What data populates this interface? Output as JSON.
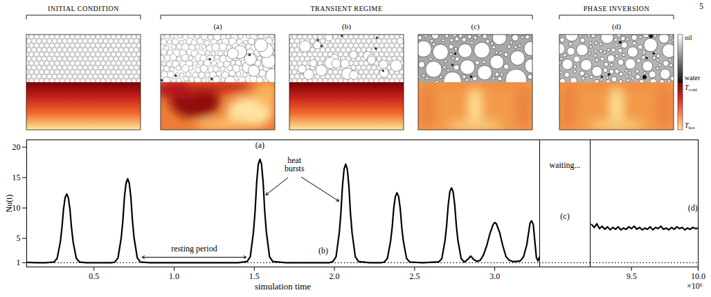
{
  "figure": {
    "page_number": "5",
    "groups": [
      {
        "title": "INITIAL CONDITION",
        "panels": [
          null
        ]
      },
      {
        "title": "TRANSIENT REGIME",
        "panels": [
          "(a)",
          "(b)",
          "(c)"
        ]
      },
      {
        "title": "PHASE INVERSION",
        "panels": [
          "(d)"
        ]
      }
    ],
    "emulsion_colorbar": {
      "top": "oil",
      "bottom": "water"
    },
    "temperature_colorbar": {
      "top": {
        "text": "T",
        "subscript": "cold"
      },
      "bottom": {
        "text": "T",
        "subscript": "hot"
      }
    }
  },
  "chart_data": {
    "type": "line",
    "ylabel": "Nu(t)",
    "xlabel": "simulation time",
    "x_multiplier": "×10⁶",
    "color": "#000000",
    "ylim": [
      0.3,
      21.2
    ],
    "yticks": [
      1,
      5,
      10,
      15,
      20
    ],
    "reference_line": {
      "y": 1,
      "line_style": "dotted"
    },
    "segments": [
      {
        "xlim": [
          0.08,
          3.28
        ],
        "xticks": [
          0.5,
          {
            "value": 1,
            "label": "1.0"
          },
          1.5,
          {
            "value": 2,
            "label": "2.0"
          },
          2.5,
          {
            "value": 3,
            "label": "3.0"
          }
        ],
        "x": [
          0.08,
          0.15,
          0.2,
          0.25,
          0.27,
          0.29,
          0.3,
          0.31,
          0.32,
          0.33,
          0.34,
          0.35,
          0.36,
          0.37,
          0.39,
          0.41,
          0.45,
          0.55,
          0.61,
          0.63,
          0.65,
          0.67,
          0.68,
          0.69,
          0.7,
          0.71,
          0.72,
          0.73,
          0.74,
          0.75,
          0.77,
          0.79,
          0.85,
          1.0,
          1.2,
          1.4,
          1.455,
          1.475,
          1.495,
          1.505,
          1.515,
          1.525,
          1.535,
          1.545,
          1.555,
          1.565,
          1.575,
          1.595,
          1.615,
          1.7,
          1.85,
          1.97,
          1.99,
          2.01,
          2.03,
          2.04,
          2.05,
          2.06,
          2.07,
          2.08,
          2.09,
          2.1,
          2.11,
          2.13,
          2.15,
          2.22,
          2.29,
          2.31,
          2.33,
          2.35,
          2.36,
          2.37,
          2.38,
          2.39,
          2.4,
          2.41,
          2.42,
          2.43,
          2.45,
          2.47,
          2.55,
          2.63,
          2.65,
          2.67,
          2.69,
          2.7,
          2.71,
          2.72,
          2.73,
          2.74,
          2.75,
          2.76,
          2.77,
          2.79,
          2.81,
          2.83,
          2.85,
          2.87,
          2.89,
          2.91,
          2.93,
          2.95,
          2.97,
          2.99,
          3.0,
          3.01,
          3.03,
          3.05,
          3.07,
          3.09,
          3.11,
          3.13,
          3.16,
          3.18,
          3.2,
          3.22,
          3.23,
          3.24,
          3.25,
          3.26,
          3.27,
          3.28
        ],
        "values": [
          1.05,
          1.0,
          1.0,
          1.1,
          1.7,
          4.4,
          6.7,
          9.8,
          11.7,
          12.3,
          11.7,
          9.8,
          6.7,
          4.4,
          1.7,
          1.1,
          1.0,
          1.0,
          1.0,
          1.1,
          1.8,
          5.1,
          7.9,
          11.8,
          14.1,
          14.8,
          14.1,
          11.8,
          7.9,
          5.1,
          1.8,
          1.1,
          1.0,
          1.0,
          1.0,
          1.0,
          1.2,
          2.0,
          6.1,
          9.5,
          14.3,
          17.2,
          18.0,
          17.2,
          14.3,
          9.5,
          6.1,
          2.0,
          1.2,
          1.0,
          1.0,
          1.0,
          1.2,
          2.0,
          5.9,
          9.1,
          13.6,
          16.4,
          17.2,
          16.4,
          13.6,
          9.1,
          5.9,
          2.0,
          1.2,
          1.0,
          1.0,
          1.1,
          1.7,
          4.5,
          6.8,
          10.0,
          11.9,
          12.5,
          11.9,
          10.0,
          6.8,
          4.5,
          1.7,
          1.1,
          1.0,
          1.1,
          1.1,
          1.7,
          4.7,
          7.2,
          10.6,
          12.7,
          13.3,
          12.7,
          10.6,
          7.2,
          4.7,
          1.7,
          1.1,
          1.5,
          2.1,
          1.5,
          1.2,
          1.4,
          2.3,
          3.8,
          5.8,
          7.3,
          7.6,
          7.4,
          6.0,
          3.8,
          2.0,
          1.4,
          1.2,
          1.2,
          1.3,
          2.0,
          4.0,
          7.5,
          7.9,
          7.3,
          4.5,
          1.8,
          1.3,
          2.0
        ],
        "annotations": [
          {
            "text": "(a)",
            "x": 1.535,
            "y": 20.3
          },
          {
            "text": "heat bursts",
            "x": 1.75,
            "y": 15.8,
            "arrows_to": [
              [
                1.565,
                12.0
              ],
              [
                2.035,
                11.0
              ]
            ]
          },
          {
            "text": "resting period",
            "x": 1.125,
            "y": 3.3,
            "span": [
              0.8,
              1.45
            ],
            "span_y": 1.9
          },
          {
            "text": "(b)",
            "x": 1.93,
            "y": 3.0
          }
        ]
      },
      {
        "label": "waiting...",
        "annotations": [
          {
            "text": "(c)"
          }
        ]
      },
      {
        "xlim": [
          9.19,
          10.0
        ],
        "xticks": [
          9.5,
          {
            "value": 10,
            "label": "10.0"
          }
        ],
        "x": [
          9.2,
          9.22,
          9.24,
          9.26,
          9.28,
          9.3,
          9.32,
          9.34,
          9.36,
          9.38,
          9.4,
          9.42,
          9.44,
          9.46,
          9.48,
          9.5,
          9.52,
          9.54,
          9.56,
          9.58,
          9.6,
          9.62,
          9.64,
          9.66,
          9.68,
          9.7,
          9.72,
          9.74,
          9.76,
          9.78,
          9.8,
          9.82,
          9.84,
          9.86,
          9.88,
          9.9,
          9.92,
          9.94,
          9.96,
          9.98,
          10.0
        ],
        "values": [
          7.3,
          6.8,
          7.4,
          6.6,
          7.0,
          6.5,
          6.9,
          6.4,
          6.8,
          6.5,
          6.9,
          6.4,
          6.7,
          6.5,
          6.9,
          6.6,
          7.0,
          6.5,
          6.8,
          6.4,
          6.7,
          6.5,
          6.9,
          6.4,
          6.8,
          6.6,
          7.0,
          6.5,
          6.7,
          6.4,
          6.8,
          6.5,
          6.9,
          6.6,
          6.8,
          6.4,
          6.7,
          6.5,
          6.8,
          6.6,
          6.7
        ],
        "annotations": [
          {
            "text": "(d)",
            "x": 9.96,
            "y": 10.0
          }
        ]
      }
    ]
  }
}
